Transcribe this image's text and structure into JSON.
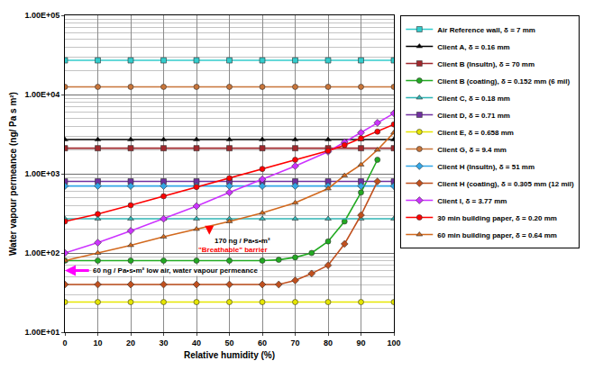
{
  "chart_data": {
    "type": "line",
    "x_label": "Relative humidity (%)",
    "y_label": "Water vapour permeance (ng/ Pa s m²)",
    "log": "y",
    "grid": true,
    "legend": "right",
    "xlim": [
      0,
      100
    ],
    "xticks": [
      0,
      10,
      20,
      30,
      40,
      50,
      60,
      70,
      80,
      90,
      100
    ],
    "ylim": [
      10,
      100000
    ],
    "yticks": [
      {
        "value": 10,
        "label": "1.00E+01"
      },
      {
        "value": 100,
        "label": "1.00E+02"
      },
      {
        "value": 1000,
        "label": "1.00E+03"
      },
      {
        "value": 10000,
        "label": "1.00E+04"
      },
      {
        "value": 100000,
        "label": "1.00E+05"
      }
    ],
    "series": [
      {
        "name": "Air Reference wall, δ = 7 mm",
        "color": "#33cccc",
        "marker": "square",
        "x": [
          0,
          10,
          20,
          30,
          40,
          50,
          60,
          70,
          80,
          90,
          100
        ],
        "values": [
          27000,
          27000,
          27000,
          27000,
          27000,
          27000,
          27000,
          27000,
          27000,
          27000,
          27000
        ]
      },
      {
        "name": "Client A, δ = 0.16 mm",
        "color": "#000000",
        "marker": "triangle-up",
        "x": [
          0,
          10,
          20,
          30,
          40,
          50,
          60,
          70,
          80,
          90,
          100
        ],
        "values": [
          2700,
          2700,
          2700,
          2700,
          2700,
          2700,
          2700,
          2700,
          2700,
          2700,
          2700
        ]
      },
      {
        "name": "Client B (Insultn), δ = 70 mm",
        "color": "#a0282d",
        "marker": "square",
        "x": [
          0,
          10,
          20,
          30,
          40,
          50,
          60,
          70,
          80,
          90,
          100
        ],
        "values": [
          2100,
          2100,
          2100,
          2100,
          2100,
          2100,
          2100,
          2100,
          2100,
          2100,
          2100
        ]
      },
      {
        "name": "Client B (coating), δ = 0.152 mm (6 mil)",
        "color": "#22aa22",
        "marker": "circle",
        "x": [
          0,
          10,
          20,
          30,
          40,
          50,
          60,
          65,
          70,
          75,
          80,
          85,
          90,
          95
        ],
        "values": [
          80,
          80,
          80,
          80,
          80,
          80,
          80,
          82,
          88,
          100,
          140,
          250,
          580,
          1500
        ]
      },
      {
        "name": "Client C, δ = 0.18 mm",
        "color": "#2fb5b5",
        "marker": "triangle-up",
        "x": [
          0,
          10,
          20,
          30,
          40,
          50,
          60,
          70,
          80,
          90,
          100
        ],
        "values": [
          270,
          270,
          270,
          270,
          270,
          270,
          270,
          270,
          270,
          270,
          270
        ]
      },
      {
        "name": "Client D, δ = 0.71 mm",
        "color": "#7030a0",
        "marker": "square",
        "x": [
          0,
          10,
          20,
          30,
          40,
          50,
          60,
          70,
          80,
          90,
          100
        ],
        "values": [
          800,
          800,
          800,
          800,
          800,
          800,
          800,
          800,
          800,
          800,
          800
        ]
      },
      {
        "name": "Client E, δ = 0.658 mm",
        "color": "#e6e600",
        "marker": "circle",
        "x": [
          0,
          10,
          20,
          30,
          40,
          50,
          60,
          70,
          80,
          90,
          100
        ],
        "values": [
          24,
          24,
          24,
          24,
          24,
          24,
          24,
          24,
          24,
          24,
          24
        ]
      },
      {
        "name": "Client G, δ = 9.4 mm",
        "color": "#c8753a",
        "marker": "circle",
        "x": [
          0,
          10,
          20,
          30,
          40,
          50,
          60,
          70,
          80,
          90,
          100
        ],
        "values": [
          12500,
          12500,
          12500,
          12500,
          12500,
          12500,
          12500,
          12500,
          12500,
          12500,
          12500
        ]
      },
      {
        "name": "Client H (Insultn), δ = 51 mm",
        "color": "#33a6e6",
        "marker": "diamond",
        "x": [
          0,
          10,
          20,
          30,
          40,
          50,
          60,
          70,
          80,
          90,
          100
        ],
        "values": [
          700,
          700,
          700,
          700,
          700,
          700,
          700,
          700,
          700,
          700,
          700
        ]
      },
      {
        "name": "Client H (coating), δ = 0.305 mm (12 mil)",
        "color": "#c0501e",
        "marker": "diamond",
        "x": [
          0,
          10,
          20,
          30,
          40,
          50,
          60,
          65,
          70,
          75,
          80,
          85,
          90,
          95
        ],
        "values": [
          40,
          40,
          40,
          40,
          40,
          40,
          40,
          40,
          45,
          55,
          70,
          130,
          300,
          800
        ]
      },
      {
        "name": "Client I, δ = 3.77 mm",
        "color": "#cc33ff",
        "marker": "diamond",
        "x": [
          0,
          10,
          20,
          30,
          40,
          50,
          60,
          70,
          80,
          85,
          90,
          95,
          100
        ],
        "values": [
          100,
          135,
          190,
          270,
          390,
          580,
          850,
          1250,
          1900,
          2500,
          3300,
          4400,
          5800
        ]
      },
      {
        "name": "30 min building paper, δ = 0.20 mm",
        "color": "#ff0000",
        "marker": "circle",
        "x": [
          0,
          10,
          20,
          30,
          40,
          50,
          60,
          70,
          80,
          85,
          90,
          95,
          100
        ],
        "values": [
          250,
          310,
          400,
          520,
          680,
          880,
          1150,
          1500,
          1950,
          2300,
          2800,
          3400,
          4200
        ]
      },
      {
        "name": "60 min building paper, δ = 0.64 mm",
        "color": "#d2691e",
        "marker": "triangle-up",
        "x": [
          0,
          10,
          20,
          30,
          40,
          50,
          60,
          70,
          80,
          85,
          90,
          95,
          100
        ],
        "values": [
          80,
          100,
          125,
          160,
          200,
          250,
          320,
          430,
          650,
          950,
          1300,
          2000,
          3300
        ]
      }
    ],
    "annotations": [
      {
        "text": "170 ng / Pa•s•m²",
        "x": 45,
        "y": 170
      },
      {
        "text": "\"Breathable\" barrier",
        "x": 40,
        "y": 110
      },
      {
        "text": "60 ng / Pa•s•m² low air, water vapour permeance",
        "x": 8,
        "y": 60
      }
    ]
  }
}
